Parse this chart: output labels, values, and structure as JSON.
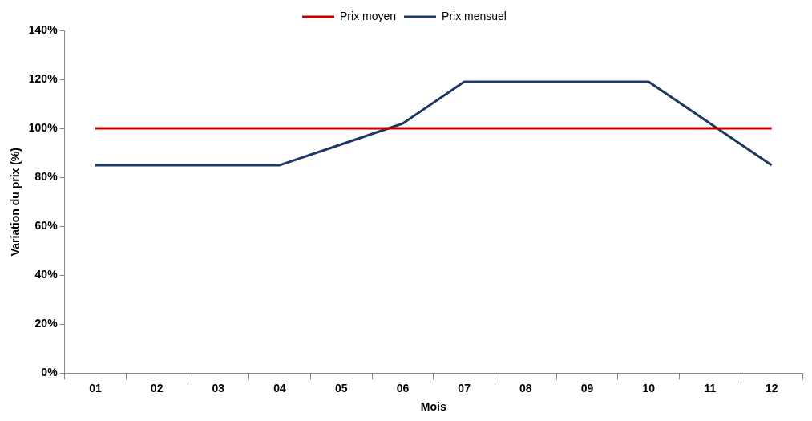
{
  "chart_data": {
    "type": "line",
    "xlabel": "Mois",
    "ylabel": "Variation du prix (%)",
    "categories": [
      "01",
      "02",
      "03",
      "04",
      "05",
      "06",
      "07",
      "08",
      "09",
      "10",
      "11",
      "12"
    ],
    "series": [
      {
        "name": "Prix moyen",
        "color": "#c00000",
        "values": [
          100,
          100,
          100,
          100,
          100,
          100,
          100,
          100,
          100,
          100,
          100,
          100
        ]
      },
      {
        "name": "Prix mensuel",
        "color": "#1f3864",
        "values": [
          85,
          85,
          85,
          85,
          93.5,
          102,
          119,
          119,
          119,
          119,
          102,
          85
        ]
      }
    ],
    "ylim": [
      0,
      140
    ],
    "yticks": [
      {
        "value": 0,
        "label": "0%"
      },
      {
        "value": 20,
        "label": "20%"
      },
      {
        "value": 40,
        "label": "40%"
      },
      {
        "value": 60,
        "label": "60%"
      },
      {
        "value": 80,
        "label": "80%"
      },
      {
        "value": 100,
        "label": "100%"
      },
      {
        "value": 120,
        "label": "120%"
      },
      {
        "value": 140,
        "label": "140%"
      }
    ],
    "grid": false,
    "legend": "top",
    "marker": "none",
    "line_style": "solid"
  }
}
